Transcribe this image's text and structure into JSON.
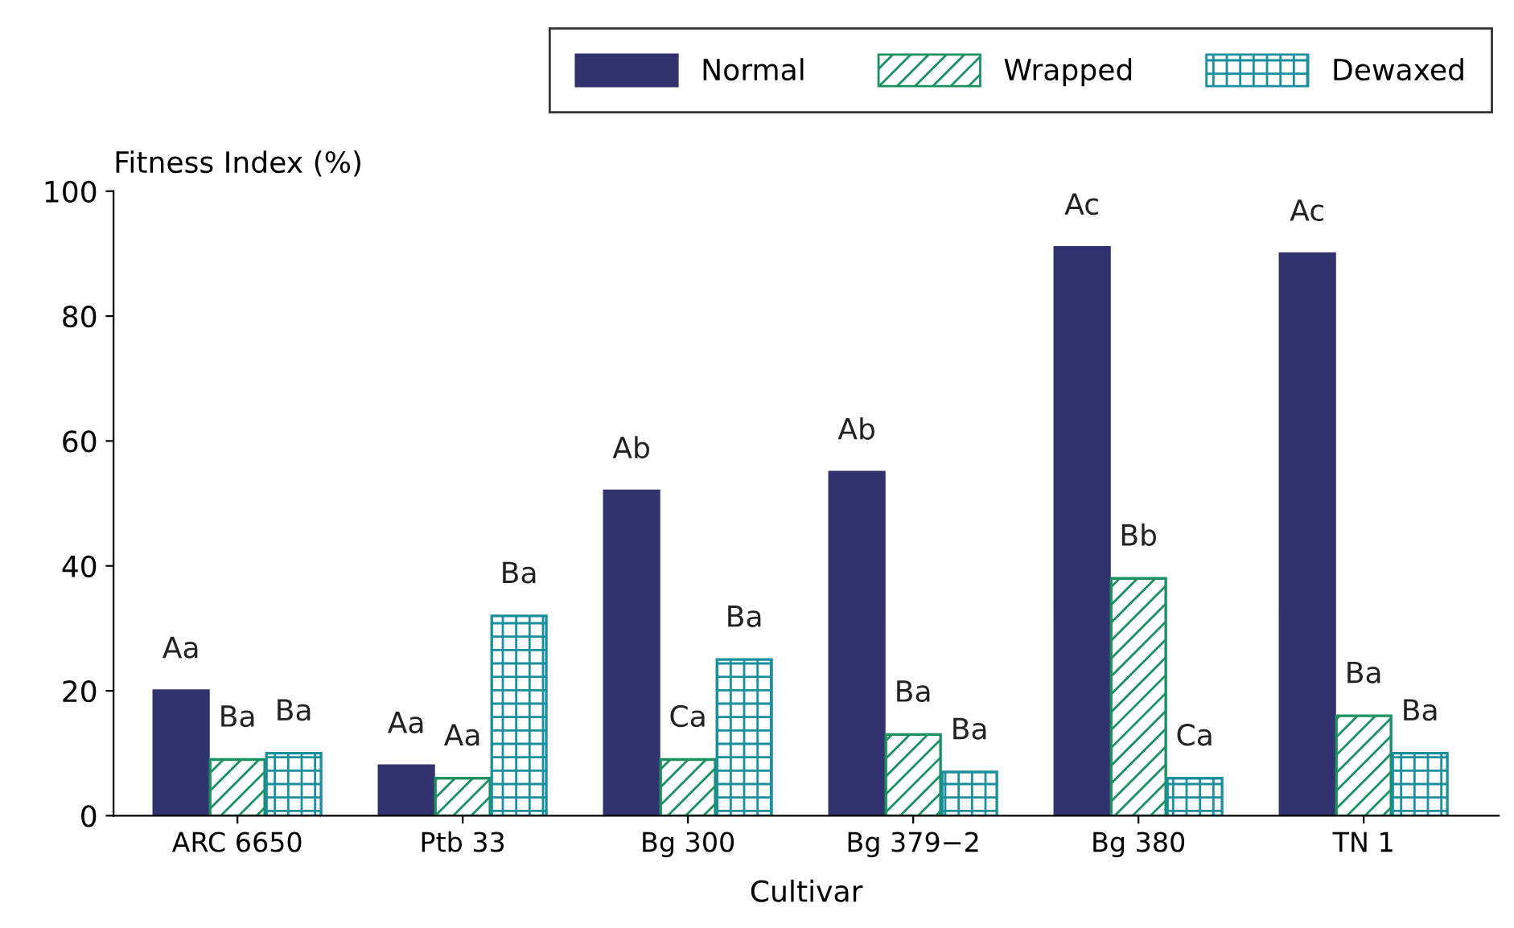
{
  "chart_data": {
    "type": "bar",
    "ylabel": "Fitness Index (%)",
    "xlabel": "Cultivar",
    "categories": [
      "ARC 6650",
      "Ptb 33",
      "Bg 300",
      "Bg 379−2",
      "Bg 380",
      "TN 1"
    ],
    "series": [
      {
        "name": "Normal",
        "color": "#32326e",
        "values": [
          20,
          8,
          52,
          55,
          91,
          90
        ],
        "value_labels": [
          "Aa",
          "Aa",
          "Ab",
          "Ab",
          "Ac",
          "Ac"
        ]
      },
      {
        "name": "Wrapped",
        "color": "#1a9060",
        "values": [
          9,
          6,
          9,
          13,
          38,
          16
        ],
        "value_labels": [
          "Ba",
          "Aa",
          "Ca",
          "Ba",
          "Bb",
          "Ba"
        ]
      },
      {
        "name": "Dewaxed",
        "color": "#1a8fa0",
        "values": [
          10,
          32,
          25,
          7,
          6,
          10
        ],
        "value_labels": [
          "Ba",
          "Ba",
          "Ba",
          "Ba",
          "Ca",
          "Ba"
        ]
      }
    ],
    "ylim": [
      0,
      100
    ],
    "yticks": [
      0,
      20,
      40,
      60,
      80,
      100
    ],
    "grid": false,
    "legend": "top right"
  }
}
